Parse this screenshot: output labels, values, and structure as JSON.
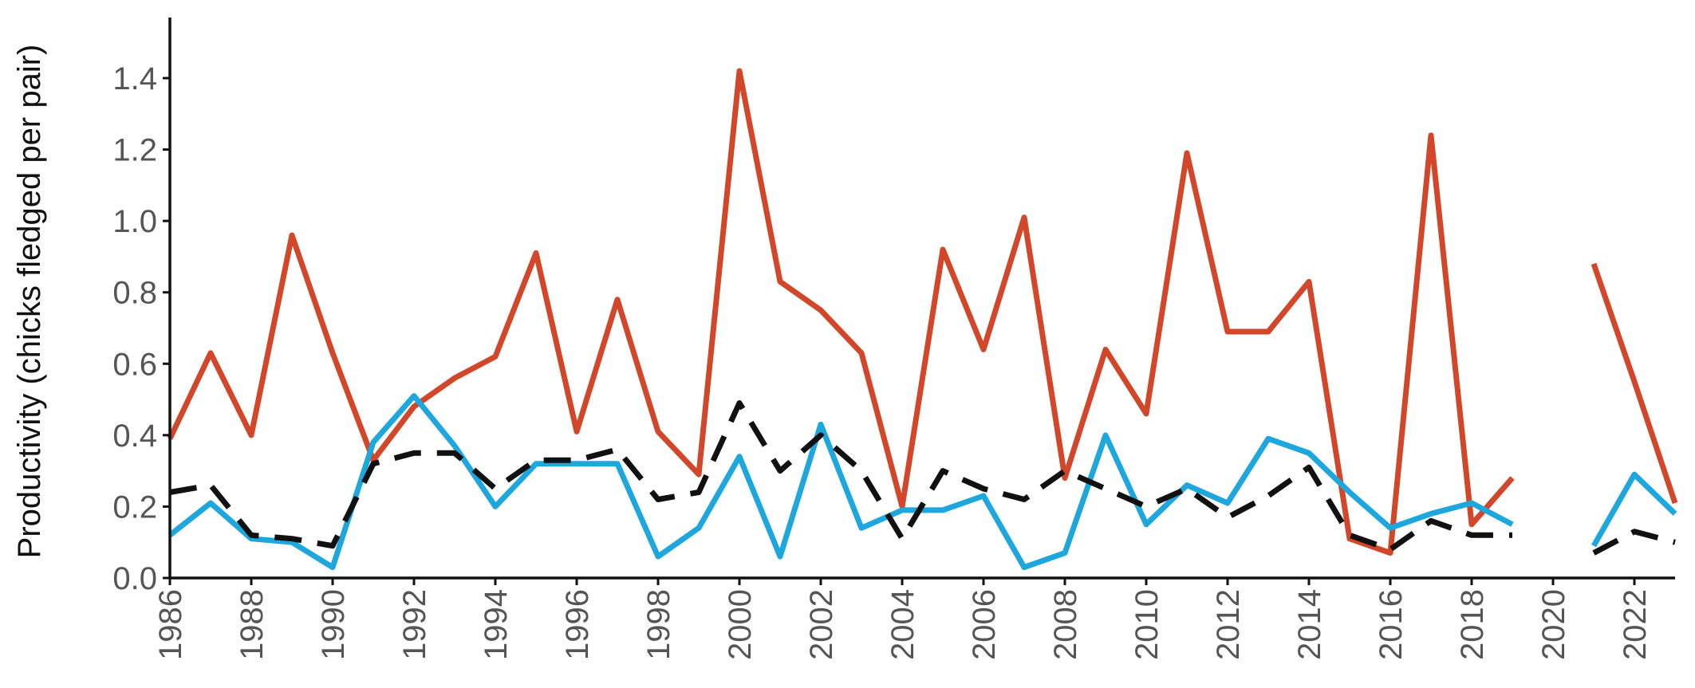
{
  "chart_data": {
    "type": "line",
    "title": "",
    "xlabel": "",
    "ylabel": "Productivity (chicks fledged per pair)",
    "xlim": [
      1986,
      2023
    ],
    "ylim": [
      0,
      1.55
    ],
    "grid": false,
    "legend": "none",
    "x": [
      1986,
      1987,
      1988,
      1989,
      1990,
      1991,
      1992,
      1993,
      1994,
      1995,
      1996,
      1997,
      1998,
      1999,
      2000,
      2001,
      2002,
      2003,
      2004,
      2005,
      2006,
      2007,
      2008,
      2009,
      2010,
      2011,
      2012,
      2013,
      2014,
      2015,
      2016,
      2017,
      2018,
      2019,
      2020,
      2021,
      2022,
      2023
    ],
    "x_ticks": [
      "1986",
      "1988",
      "1990",
      "1992",
      "1994",
      "1996",
      "1998",
      "2000",
      "2002",
      "2004",
      "2006",
      "2008",
      "2010",
      "2012",
      "2014",
      "2016",
      "2018",
      "2020",
      "2022"
    ],
    "y_ticks": [
      "0.0",
      "0.2",
      "0.4",
      "0.6",
      "0.8",
      "1.0",
      "1.2",
      "1.4"
    ],
    "series": [
      {
        "color": "#d2462a",
        "dash": "solid",
        "values": [
          0.39,
          0.63,
          0.4,
          0.96,
          0.63,
          0.33,
          0.48,
          0.56,
          0.62,
          0.91,
          0.41,
          0.78,
          0.41,
          0.29,
          1.42,
          0.83,
          0.75,
          0.63,
          0.2,
          0.92,
          0.64,
          1.01,
          0.28,
          0.64,
          0.46,
          1.19,
          0.69,
          0.69,
          0.83,
          0.11,
          0.07,
          1.24,
          0.15,
          0.28,
          null,
          0.88,
          0.55,
          0.21
        ]
      },
      {
        "color": "#1ea7dc",
        "dash": "solid",
        "values": [
          0.12,
          0.21,
          0.11,
          0.1,
          0.03,
          0.38,
          0.51,
          0.37,
          0.2,
          0.32,
          0.32,
          0.32,
          0.06,
          0.14,
          0.34,
          0.06,
          0.43,
          0.14,
          0.19,
          0.19,
          0.23,
          0.03,
          0.07,
          0.4,
          0.15,
          0.26,
          0.21,
          0.39,
          0.35,
          0.24,
          0.14,
          0.18,
          0.21,
          0.15,
          null,
          0.09,
          0.29,
          0.18
        ]
      },
      {
        "color": "#111111",
        "dash": "dashed",
        "values": [
          0.24,
          0.26,
          0.12,
          0.11,
          0.09,
          0.32,
          0.35,
          0.35,
          0.25,
          0.33,
          0.33,
          0.36,
          0.22,
          0.24,
          0.49,
          0.3,
          0.4,
          0.3,
          0.11,
          0.3,
          0.25,
          0.22,
          0.3,
          0.25,
          0.2,
          0.25,
          0.17,
          0.23,
          0.31,
          0.12,
          0.08,
          0.16,
          0.12,
          0.12,
          null,
          0.07,
          0.13,
          0.1
        ]
      }
    ]
  }
}
